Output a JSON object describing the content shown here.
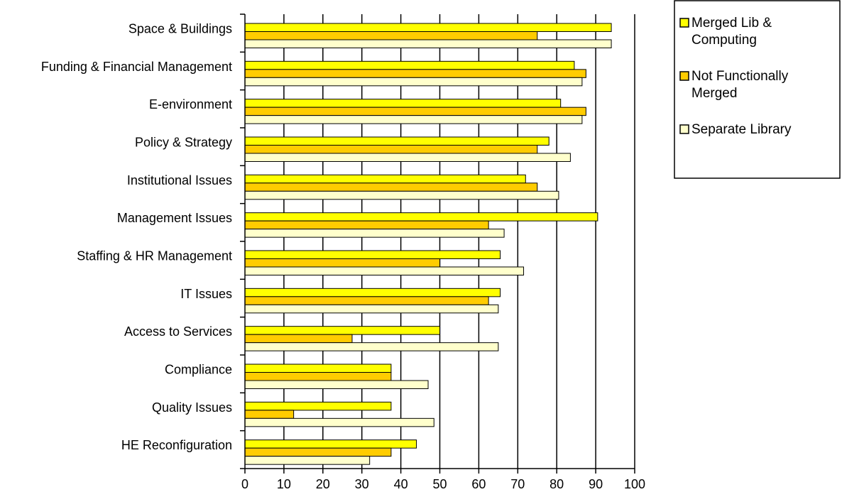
{
  "chart_data": {
    "type": "bar",
    "orientation": "horizontal",
    "categories": [
      "Space & Buildings",
      "Funding & Financial Management",
      "E-environment",
      "Policy & Strategy",
      "Institutional Issues",
      "Management Issues",
      "Staffing & HR Management",
      "IT Issues",
      "Access to Services",
      "Compliance",
      "Quality Issues",
      "HE Reconfiguration"
    ],
    "series": [
      {
        "name": "Merged Lib & Computing",
        "legend_lines": [
          "Merged Lib &",
          "Computing"
        ],
        "color": "#FFFF00",
        "values": [
          94,
          84.5,
          81,
          78,
          72,
          90.5,
          65.5,
          65.5,
          50,
          37.5,
          37.5,
          44
        ]
      },
      {
        "name": "Not Functionally Merged",
        "legend_lines": [
          "Not Functionally",
          "Merged"
        ],
        "color": "#FFCC00",
        "values": [
          75,
          87.5,
          87.5,
          75,
          75,
          62.5,
          50,
          62.5,
          27.5,
          37.5,
          12.5,
          37.5
        ]
      },
      {
        "name": "Separate Library",
        "legend_lines": [
          "Separate Library"
        ],
        "color": "#FFFFCC",
        "values": [
          94,
          86.5,
          86.5,
          83.5,
          80.5,
          66.5,
          71.5,
          65,
          65,
          47,
          48.5,
          32
        ]
      }
    ],
    "xlim": [
      0,
      100
    ],
    "xticks": [
      0,
      10,
      20,
      30,
      40,
      50,
      60,
      70,
      80,
      90,
      100
    ],
    "title": "",
    "xlabel": "",
    "ylabel": "",
    "grid": "vertical",
    "legend_position": "top-right"
  }
}
